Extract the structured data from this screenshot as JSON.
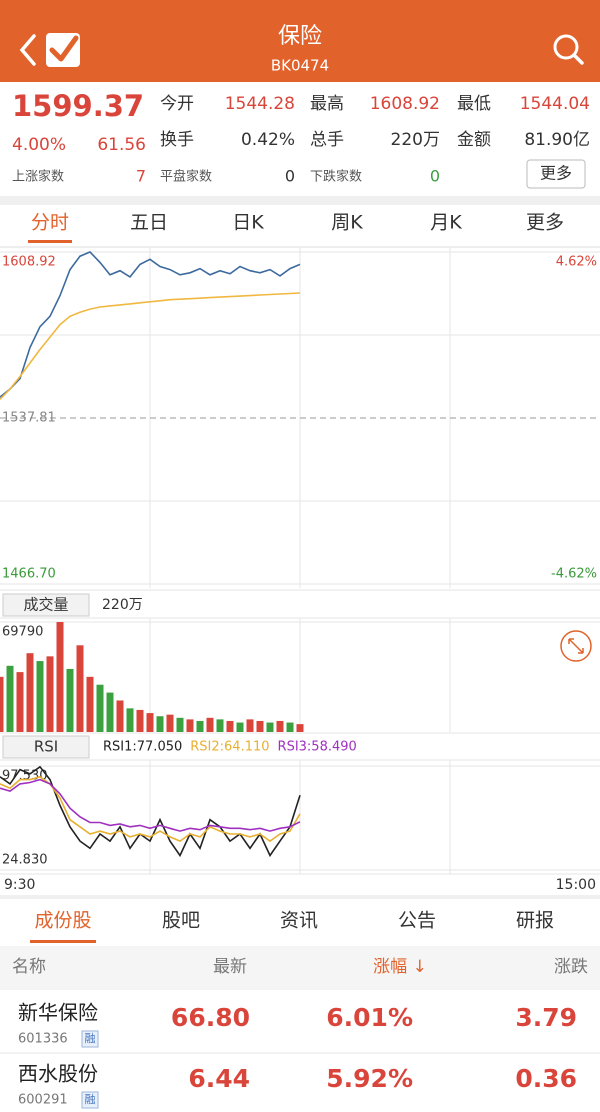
{
  "header": {
    "title": "保险",
    "code": "BK0474"
  },
  "quote": {
    "price": "1599.37",
    "change_pct": "4.00%",
    "change": "61.56",
    "stats": [
      {
        "label": "今开",
        "value": "1544.28"
      },
      {
        "label": "最高",
        "value": "1608.92"
      },
      {
        "label": "最低",
        "value": "1544.04"
      },
      {
        "label": "换手",
        "value": "0.42%"
      },
      {
        "label": "总手",
        "value": "220万"
      },
      {
        "label": "金额",
        "value": "81.90亿"
      }
    ],
    "breadth": [
      {
        "label": "上涨家数",
        "value": "7"
      },
      {
        "label": "平盘家数",
        "value": "0"
      },
      {
        "label": "下跌家数",
        "value": "0"
      }
    ],
    "more": "更多"
  },
  "chart_tabs": [
    "分时",
    "五日",
    "日K",
    "周K",
    "月K",
    "更多"
  ],
  "chart_data": [
    {
      "type": "line",
      "x": [
        "9:30",
        "9:34",
        "9:38",
        "9:42",
        "9:46",
        "9:50",
        "9:54",
        "9:58",
        "10:02",
        "10:06",
        "10:10",
        "10:14",
        "10:18",
        "10:22",
        "10:26",
        "10:30",
        "10:34",
        "10:38",
        "10:42",
        "10:46",
        "10:50",
        "10:54",
        "10:58",
        "11:02",
        "11:06",
        "11:10",
        "11:14",
        "11:18",
        "11:22",
        "11:26",
        "11:30"
      ],
      "xlim": [
        "9:30",
        "15:00"
      ],
      "ylim": [
        1466.7,
        1608.92
      ],
      "yticks": [
        {
          "value": 1466.7,
          "label": "1466.70"
        },
        1537.81,
        1608.92
      ],
      "ytick_colors": [
        "#3a9a3a",
        "#888888",
        "#d9453a"
      ],
      "y2lim": [
        -4.62,
        4.62
      ],
      "y2ticks": [
        {
          "value": -4.62,
          "label": "-4.62%"
        },
        {
          "value": 4.62,
          "label": "4.62%"
        }
      ],
      "y2tick_colors": [
        "#3a9a3a",
        "#d9453a"
      ],
      "series": [
        {
          "color": "#3d6a9e",
          "values": [
            1546.7,
            1550.25,
            1554.7,
            1568.03,
            1576.92,
            1581.37,
            1590.25,
            1601.37,
            1607.14,
            1608.92,
            1604.48,
            1599.14,
            1600.92,
            1598.25,
            1603.59,
            1605.81,
            1602.7,
            1601.37,
            1599.14,
            1600.03,
            1601.81,
            1599.14,
            1600.92,
            1599.59,
            1602.7,
            1600.92,
            1600.03,
            1601.37,
            1598.7,
            1601.81,
            1603.59
          ]
        },
        {
          "color": "#f0b840",
          "values": [
            1545.81,
            1550.25,
            1555.59,
            1561.37,
            1567.14,
            1572.47,
            1577.81,
            1581.37,
            1583.14,
            1584.48,
            1585.37,
            1585.81,
            1586.25,
            1586.7,
            1587.14,
            1587.59,
            1588.03,
            1588.48,
            1588.7,
            1588.92,
            1589.14,
            1589.37,
            1589.59,
            1589.81,
            1590.03,
            1590.25,
            1590.48,
            1590.7,
            1590.92,
            1591.14,
            1591.37
          ]
        }
      ]
    },
    {
      "type": "bar",
      "title": "成交量",
      "total": "220万",
      "x": [
        "9:30",
        "9:34",
        "9:38",
        "9:42",
        "9:46",
        "9:50",
        "9:54",
        "9:58",
        "10:02",
        "10:06",
        "10:10",
        "10:14",
        "10:18",
        "10:22",
        "10:26",
        "10:30",
        "10:34",
        "10:38",
        "10:42",
        "10:46",
        "10:50",
        "10:54",
        "10:58",
        "11:02",
        "11:06",
        "11:10",
        "11:14",
        "11:18",
        "11:22",
        "11:26",
        "11:30"
      ],
      "xlim": [
        "9:30",
        "15:00"
      ],
      "ylim": [
        0,
        69790
      ],
      "yticks": [
        69790
      ],
      "values": [
        35000,
        42000,
        38000,
        50000,
        45000,
        48000,
        69790,
        40000,
        55000,
        35000,
        30000,
        25000,
        20000,
        15000,
        14000,
        12000,
        10000,
        11000,
        9000,
        8000,
        7000,
        9000,
        8000,
        7000,
        6000,
        8000,
        7000,
        6000,
        7000,
        6000,
        5000
      ],
      "colors": [
        "#d9453a",
        "#3aa040",
        "#d9453a",
        "#d9453a",
        "#3aa040",
        "#d9453a",
        "#d9453a",
        "#3aa040",
        "#d9453a",
        "#d9453a",
        "#3aa040",
        "#3aa040",
        "#d9453a",
        "#3aa040",
        "#d9453a",
        "#d9453a",
        "#3aa040",
        "#d9453a",
        "#3aa040",
        "#d9453a",
        "#3aa040",
        "#d9453a",
        "#3aa040",
        "#d9453a",
        "#3aa040",
        "#d9453a",
        "#d9453a",
        "#3aa040",
        "#d9453a",
        "#3aa040",
        "#d9453a"
      ]
    },
    {
      "type": "line",
      "title": "RSI",
      "x": [
        "9:30",
        "9:34",
        "9:38",
        "9:42",
        "9:46",
        "9:50",
        "9:54",
        "9:58",
        "10:02",
        "10:06",
        "10:10",
        "10:14",
        "10:18",
        "10:22",
        "10:26",
        "10:30",
        "10:34",
        "10:38",
        "10:42",
        "10:46",
        "10:50",
        "10:54",
        "10:58",
        "11:02",
        "11:06",
        "11:10",
        "11:14",
        "11:18",
        "11:22",
        "11:26",
        "11:30"
      ],
      "xlim": [
        "9:30",
        "15:00"
      ],
      "ylim": [
        24.83,
        97.53
      ],
      "yticks": [
        {
          "value": 24.83,
          "label": "24.830"
        },
        {
          "value": 97.53,
          "label": "97.530"
        }
      ],
      "series": [
        {
          "name": "RSI1:77.050",
          "color": "#222222",
          "values": [
            90,
            85,
            95,
            92,
            97,
            88,
            70,
            55,
            45,
            40,
            50,
            45,
            55,
            40,
            50,
            45,
            60,
            45,
            35,
            50,
            40,
            60,
            55,
            45,
            50,
            40,
            50,
            35,
            45,
            55,
            77.05
          ]
        },
        {
          "name": "RSI2:64.110",
          "color": "#e8b030",
          "values": [
            85,
            82,
            88,
            88,
            90,
            85,
            75,
            60,
            55,
            50,
            52,
            50,
            52,
            48,
            50,
            48,
            52,
            48,
            45,
            50,
            48,
            55,
            52,
            50,
            50,
            48,
            50,
            45,
            50,
            52,
            64.11
          ]
        },
        {
          "name": "RSI3:58.490",
          "color": "#a030c0",
          "values": [
            82,
            80,
            85,
            86,
            88,
            85,
            78,
            68,
            62,
            58,
            58,
            56,
            57,
            55,
            56,
            54,
            56,
            54,
            52,
            54,
            53,
            56,
            55,
            54,
            54,
            53,
            54,
            52,
            54,
            55,
            58.49
          ]
        }
      ]
    }
  ],
  "list_tabs": [
    "成份股",
    "股吧",
    "资讯",
    "公告",
    "研报"
  ],
  "table": {
    "columns": [
      "名称",
      "最新",
      "涨幅 ↓",
      "涨跌"
    ],
    "rows": [
      {
        "name": "新华保险",
        "code": "601336",
        "tag": "融",
        "cells": [
          "66.80",
          "6.01%",
          "3.79"
        ]
      },
      {
        "name": "西水股份",
        "code": "600291",
        "tag": "融",
        "cells": [
          "6.44",
          "5.92%",
          "0.36"
        ]
      }
    ]
  }
}
